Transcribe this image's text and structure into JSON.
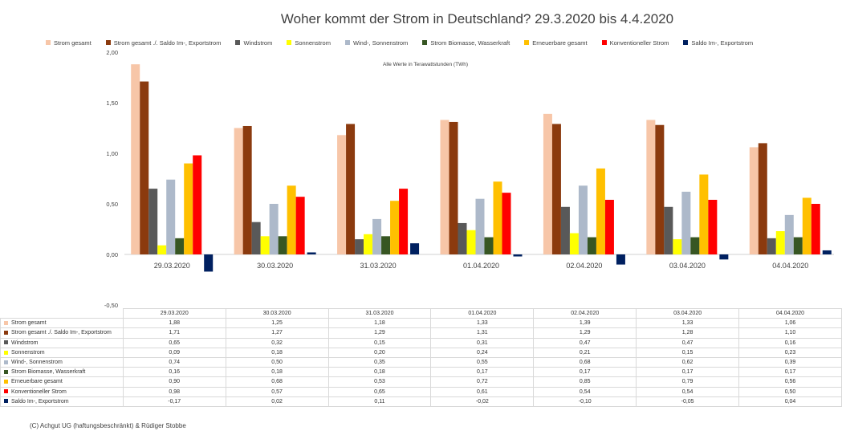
{
  "chart_data": {
    "type": "bar",
    "title": "Woher kommt der Strom in Deutschland? 29.3.2020 bis 4.4.2020",
    "note": "Alle Werte in Terawattstunden (TWh)",
    "categories": [
      "29.03.2020",
      "30.03.2020",
      "31.03.2020",
      "01.04.2020",
      "02.04.2020",
      "03.04.2020",
      "04.04.2020"
    ],
    "ylim": [
      -0.5,
      2.0
    ],
    "yticks": [
      "2,00",
      "1,50",
      "1,00",
      "0,50",
      "0,00",
      "-0,50"
    ],
    "ytick_values": [
      2.0,
      1.5,
      1.0,
      0.5,
      0.0,
      -0.5
    ],
    "grid": false,
    "legend_position": "top",
    "series": [
      {
        "name": "Strom gesamt",
        "color": "#f7c6a8",
        "values": [
          1.88,
          1.25,
          1.18,
          1.33,
          1.39,
          1.33,
          1.06
        ],
        "labels": [
          "1,88",
          "1,25",
          "1,18",
          "1,33",
          "1,39",
          "1,33",
          "1,06"
        ]
      },
      {
        "name": "Strom gesamt ./. Saldo Im-, Exportstrom",
        "color": "#8b3a0e",
        "values": [
          1.71,
          1.27,
          1.29,
          1.31,
          1.29,
          1.28,
          1.1
        ],
        "labels": [
          "1,71",
          "1,27",
          "1,29",
          "1,31",
          "1,29",
          "1,28",
          "1,10"
        ]
      },
      {
        "name": "Windstrom",
        "color": "#595959",
        "values": [
          0.65,
          0.32,
          0.15,
          0.31,
          0.47,
          0.47,
          0.16
        ],
        "labels": [
          "0,65",
          "0,32",
          "0,15",
          "0,31",
          "0,47",
          "0,47",
          "0,16"
        ]
      },
      {
        "name": "Sonnenstrom",
        "color": "#ffff00",
        "values": [
          0.09,
          0.18,
          0.2,
          0.24,
          0.21,
          0.15,
          0.23
        ],
        "labels": [
          "0,09",
          "0,18",
          "0,20",
          "0,24",
          "0,21",
          "0,15",
          "0,23"
        ]
      },
      {
        "name": "Wind-, Sonnenstrom",
        "color": "#adb9ca",
        "values": [
          0.74,
          0.5,
          0.35,
          0.55,
          0.68,
          0.62,
          0.39
        ],
        "labels": [
          "0,74",
          "0,50",
          "0,35",
          "0,55",
          "0,68",
          "0,62",
          "0,39"
        ]
      },
      {
        "name": "Strom Biomasse, Wasserkraft",
        "color": "#375623",
        "values": [
          0.16,
          0.18,
          0.18,
          0.17,
          0.17,
          0.17,
          0.17
        ],
        "labels": [
          "0,16",
          "0,18",
          "0,18",
          "0,17",
          "0,17",
          "0,17",
          "0,17"
        ]
      },
      {
        "name": "Erneuerbare gesamt",
        "color": "#ffc000",
        "values": [
          0.9,
          0.68,
          0.53,
          0.72,
          0.85,
          0.79,
          0.56
        ],
        "labels": [
          "0,90",
          "0,68",
          "0,53",
          "0,72",
          "0,85",
          "0,79",
          "0,56"
        ]
      },
      {
        "name": "Konventioneller Strom",
        "color": "#ff0000",
        "values": [
          0.98,
          0.57,
          0.65,
          0.61,
          0.54,
          0.54,
          0.5
        ],
        "labels": [
          "0,98",
          "0,57",
          "0,65",
          "0,61",
          "0,54",
          "0,54",
          "0,50"
        ]
      },
      {
        "name": "Saldo Im-, Exportstrom",
        "color": "#002060",
        "values": [
          -0.17,
          0.02,
          0.11,
          -0.02,
          -0.1,
          -0.05,
          0.04
        ],
        "labels": [
          "-0,17",
          "0,02",
          "0,11",
          "-0,02",
          "-0,10",
          "-0,05",
          "0,04"
        ]
      }
    ]
  },
  "footer": "(C) Achgut UG (haftungsbeschränkt) & Rüdiger Stobbe"
}
